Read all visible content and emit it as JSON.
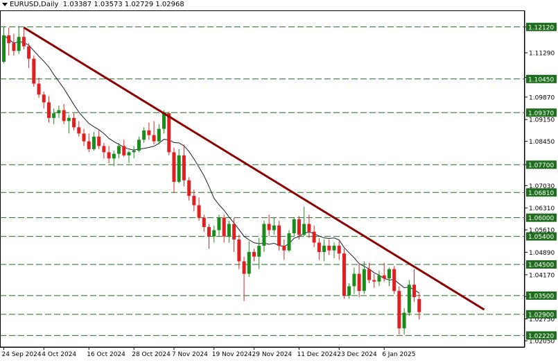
{
  "header": {
    "symbol_timeframe": "EURUSD,Daily",
    "ohlc": "1.03387 1.03573 1.02729 1.02968"
  },
  "colors": {
    "background": "#ffffff",
    "bull": "#1a8c1a",
    "bear": "#e02020",
    "level_line": "#1e6e1e",
    "level_label_bg": "#1e6e1e",
    "level_label_text": "#ffffff",
    "trendline": "#8b0000",
    "ma_line": "#1a1a2e",
    "axis_text": "#000000"
  },
  "chart_data": {
    "type": "candlestick",
    "symbol": "EURUSD",
    "timeframe": "Daily",
    "ylim": [
      1.0185,
      1.1265
    ],
    "y_ticks": [
      "1.12120",
      "1.11290",
      "1.10500",
      "1.09870",
      "1.09150",
      "1.08450",
      "1.07700",
      "1.07030",
      "1.06310",
      "1.05610",
      "1.04890",
      "1.04170",
      "1.03470",
      "1.02750",
      "1.02050"
    ],
    "x_ticks": [
      {
        "label": "24 Sep 2024",
        "index": 0
      },
      {
        "label": "4 Oct 2024",
        "index": 8
      },
      {
        "label": "16 Oct 2024",
        "index": 17
      },
      {
        "label": "28 Oct 2024",
        "index": 26
      },
      {
        "label": "7 Nov 2024",
        "index": 34
      },
      {
        "label": "19 Nov 2024",
        "index": 42
      },
      {
        "label": "29 Nov 2024",
        "index": 50
      },
      {
        "label": "11 Dec 2024",
        "index": 59
      },
      {
        "label": "23 Dec 2024",
        "index": 67
      },
      {
        "label": "6 Jan 2025",
        "index": 76
      }
    ],
    "levels": [
      "1.12120",
      "1.10450",
      "1.09370",
      "1.07700",
      "1.06810",
      "1.06000",
      "1.05400",
      "1.04500",
      "1.03500",
      "1.02900",
      "1.02220"
    ],
    "trendline": {
      "start": {
        "index": 4,
        "price": 1.121
      },
      "end": {
        "index": 96,
        "price": 1.0305
      }
    },
    "moving_average_color": "#1a1a2e",
    "candles": [
      {
        "o": 1.11,
        "h": 1.1214,
        "l": 1.1095,
        "c": 1.1185
      },
      {
        "o": 1.1185,
        "h": 1.121,
        "l": 1.112,
        "c": 1.116
      },
      {
        "o": 1.116,
        "h": 1.119,
        "l": 1.112,
        "c": 1.1135
      },
      {
        "o": 1.1135,
        "h": 1.1215,
        "l": 1.1125,
        "c": 1.118
      },
      {
        "o": 1.118,
        "h": 1.121,
        "l": 1.114,
        "c": 1.115
      },
      {
        "o": 1.115,
        "h": 1.116,
        "l": 1.108,
        "c": 1.111
      },
      {
        "o": 1.111,
        "h": 1.112,
        "l": 1.102,
        "c": 1.103
      },
      {
        "o": 1.103,
        "h": 1.105,
        "l": 1.0985,
        "c": 1.0995
      },
      {
        "o": 1.0995,
        "h": 1.1005,
        "l": 1.095,
        "c": 1.097
      },
      {
        "o": 1.097,
        "h": 1.099,
        "l": 1.0905,
        "c": 1.092
      },
      {
        "o": 1.092,
        "h": 1.095,
        "l": 1.09,
        "c": 1.0935
      },
      {
        "o": 1.0935,
        "h": 1.096,
        "l": 1.092,
        "c": 1.0945
      },
      {
        "o": 1.0945,
        "h": 1.0965,
        "l": 1.09,
        "c": 1.091
      },
      {
        "o": 1.091,
        "h": 1.093,
        "l": 1.087,
        "c": 1.092
      },
      {
        "o": 1.092,
        "h": 1.0935,
        "l": 1.088,
        "c": 1.089
      },
      {
        "o": 1.089,
        "h": 1.091,
        "l": 1.086,
        "c": 1.087
      },
      {
        "o": 1.087,
        "h": 1.0885,
        "l": 1.083,
        "c": 1.0845
      },
      {
        "o": 1.0845,
        "h": 1.087,
        "l": 1.081,
        "c": 1.082
      },
      {
        "o": 1.082,
        "h": 1.0875,
        "l": 1.0815,
        "c": 1.086
      },
      {
        "o": 1.086,
        "h": 1.088,
        "l": 1.082,
        "c": 1.083
      },
      {
        "o": 1.083,
        "h": 1.084,
        "l": 1.079,
        "c": 1.081
      },
      {
        "o": 1.081,
        "h": 1.083,
        "l": 1.0775,
        "c": 1.079
      },
      {
        "o": 1.079,
        "h": 1.0815,
        "l": 1.0765,
        "c": 1.0805
      },
      {
        "o": 1.0805,
        "h": 1.084,
        "l": 1.079,
        "c": 1.083
      },
      {
        "o": 1.083,
        "h": 1.085,
        "l": 1.0795,
        "c": 1.08
      },
      {
        "o": 1.08,
        "h": 1.0815,
        "l": 1.0775,
        "c": 1.081
      },
      {
        "o": 1.081,
        "h": 1.083,
        "l": 1.079,
        "c": 1.0815
      },
      {
        "o": 1.0815,
        "h": 1.086,
        "l": 1.081,
        "c": 1.085
      },
      {
        "o": 1.085,
        "h": 1.089,
        "l": 1.084,
        "c": 1.088
      },
      {
        "o": 1.088,
        "h": 1.0905,
        "l": 1.085,
        "c": 1.0865
      },
      {
        "o": 1.0865,
        "h": 1.091,
        "l": 1.0835,
        "c": 1.0845
      },
      {
        "o": 1.0845,
        "h": 1.09,
        "l": 1.0835,
        "c": 1.0885
      },
      {
        "o": 1.0885,
        "h": 1.0945,
        "l": 1.087,
        "c": 1.0935
      },
      {
        "o": 1.0935,
        "h": 1.094,
        "l": 1.08,
        "c": 1.081
      },
      {
        "o": 1.081,
        "h": 1.0825,
        "l": 1.068,
        "c": 1.0715
      },
      {
        "o": 1.0715,
        "h": 1.082,
        "l": 1.071,
        "c": 1.08
      },
      {
        "o": 1.08,
        "h": 1.0835,
        "l": 1.07,
        "c": 1.072
      },
      {
        "o": 1.072,
        "h": 1.073,
        "l": 1.0655,
        "c": 1.067
      },
      {
        "o": 1.067,
        "h": 1.069,
        "l": 1.062,
        "c": 1.064
      },
      {
        "o": 1.064,
        "h": 1.0665,
        "l": 1.059,
        "c": 1.06
      },
      {
        "o": 1.06,
        "h": 1.061,
        "l": 1.0555,
        "c": 1.057
      },
      {
        "o": 1.057,
        "h": 1.058,
        "l": 1.05,
        "c": 1.054
      },
      {
        "o": 1.054,
        "h": 1.0575,
        "l": 1.052,
        "c": 1.056
      },
      {
        "o": 1.056,
        "h": 1.061,
        "l": 1.054,
        "c": 1.06
      },
      {
        "o": 1.06,
        "h": 1.061,
        "l": 1.052,
        "c": 1.054
      },
      {
        "o": 1.054,
        "h": 1.059,
        "l": 1.052,
        "c": 1.058
      },
      {
        "o": 1.058,
        "h": 1.06,
        "l": 1.049,
        "c": 1.053
      },
      {
        "o": 1.053,
        "h": 1.0545,
        "l": 1.0435,
        "c": 1.046
      },
      {
        "o": 1.046,
        "h": 1.0475,
        "l": 1.0332,
        "c": 1.042
      },
      {
        "o": 1.042,
        "h": 1.0525,
        "l": 1.041,
        "c": 1.049
      },
      {
        "o": 1.049,
        "h": 1.05,
        "l": 1.046,
        "c": 1.0475
      },
      {
        "o": 1.0475,
        "h": 1.0535,
        "l": 1.0435,
        "c": 1.051
      },
      {
        "o": 1.051,
        "h": 1.059,
        "l": 1.049,
        "c": 1.058
      },
      {
        "o": 1.058,
        "h": 1.061,
        "l": 1.054,
        "c": 1.056
      },
      {
        "o": 1.056,
        "h": 1.06,
        "l": 1.0545,
        "c": 1.0575
      },
      {
        "o": 1.0575,
        "h": 1.059,
        "l": 1.0495,
        "c": 1.051
      },
      {
        "o": 1.051,
        "h": 1.053,
        "l": 1.0465,
        "c": 1.0495
      },
      {
        "o": 1.0495,
        "h": 1.056,
        "l": 1.049,
        "c": 1.055
      },
      {
        "o": 1.055,
        "h": 1.06,
        "l": 1.054,
        "c": 1.0595
      },
      {
        "o": 1.0595,
        "h": 1.0605,
        "l": 1.053,
        "c": 1.0545
      },
      {
        "o": 1.0545,
        "h": 1.0635,
        "l": 1.054,
        "c": 1.058
      },
      {
        "o": 1.058,
        "h": 1.061,
        "l": 1.0535,
        "c": 1.0555
      },
      {
        "o": 1.0555,
        "h": 1.0575,
        "l": 1.0505,
        "c": 1.052
      },
      {
        "o": 1.052,
        "h": 1.0535,
        "l": 1.0465,
        "c": 1.049
      },
      {
        "o": 1.049,
        "h": 1.053,
        "l": 1.046,
        "c": 1.051
      },
      {
        "o": 1.051,
        "h": 1.053,
        "l": 1.048,
        "c": 1.0495
      },
      {
        "o": 1.0495,
        "h": 1.052,
        "l": 1.047,
        "c": 1.051
      },
      {
        "o": 1.051,
        "h": 1.0525,
        "l": 1.0465,
        "c": 1.0485
      },
      {
        "o": 1.0485,
        "h": 1.05,
        "l": 1.034,
        "c": 1.035
      },
      {
        "o": 1.035,
        "h": 1.039,
        "l": 1.034,
        "c": 1.038
      },
      {
        "o": 1.038,
        "h": 1.044,
        "l": 1.0355,
        "c": 1.042
      },
      {
        "o": 1.042,
        "h": 1.0455,
        "l": 1.0345,
        "c": 1.0365
      },
      {
        "o": 1.0365,
        "h": 1.046,
        "l": 1.0355,
        "c": 1.0435
      },
      {
        "o": 1.0435,
        "h": 1.0455,
        "l": 1.039,
        "c": 1.04
      },
      {
        "o": 1.04,
        "h": 1.042,
        "l": 1.0375,
        "c": 1.0395
      },
      {
        "o": 1.0395,
        "h": 1.043,
        "l": 1.038,
        "c": 1.0415
      },
      {
        "o": 1.0415,
        "h": 1.0455,
        "l": 1.0395,
        "c": 1.0405
      },
      {
        "o": 1.0405,
        "h": 1.044,
        "l": 1.038,
        "c": 1.0435
      },
      {
        "o": 1.0435,
        "h": 1.0445,
        "l": 1.0355,
        "c": 1.0365
      },
      {
        "o": 1.0365,
        "h": 1.038,
        "l": 1.0225,
        "c": 1.0245
      },
      {
        "o": 1.0245,
        "h": 1.031,
        "l": 1.0225,
        "c": 1.0295
      },
      {
        "o": 1.0295,
        "h": 1.04,
        "l": 1.0285,
        "c": 1.0385
      },
      {
        "o": 1.0385,
        "h": 1.0435,
        "l": 1.033,
        "c": 1.0345
      },
      {
        "o": 1.0339,
        "h": 1.0357,
        "l": 1.0273,
        "c": 1.0297
      }
    ]
  }
}
